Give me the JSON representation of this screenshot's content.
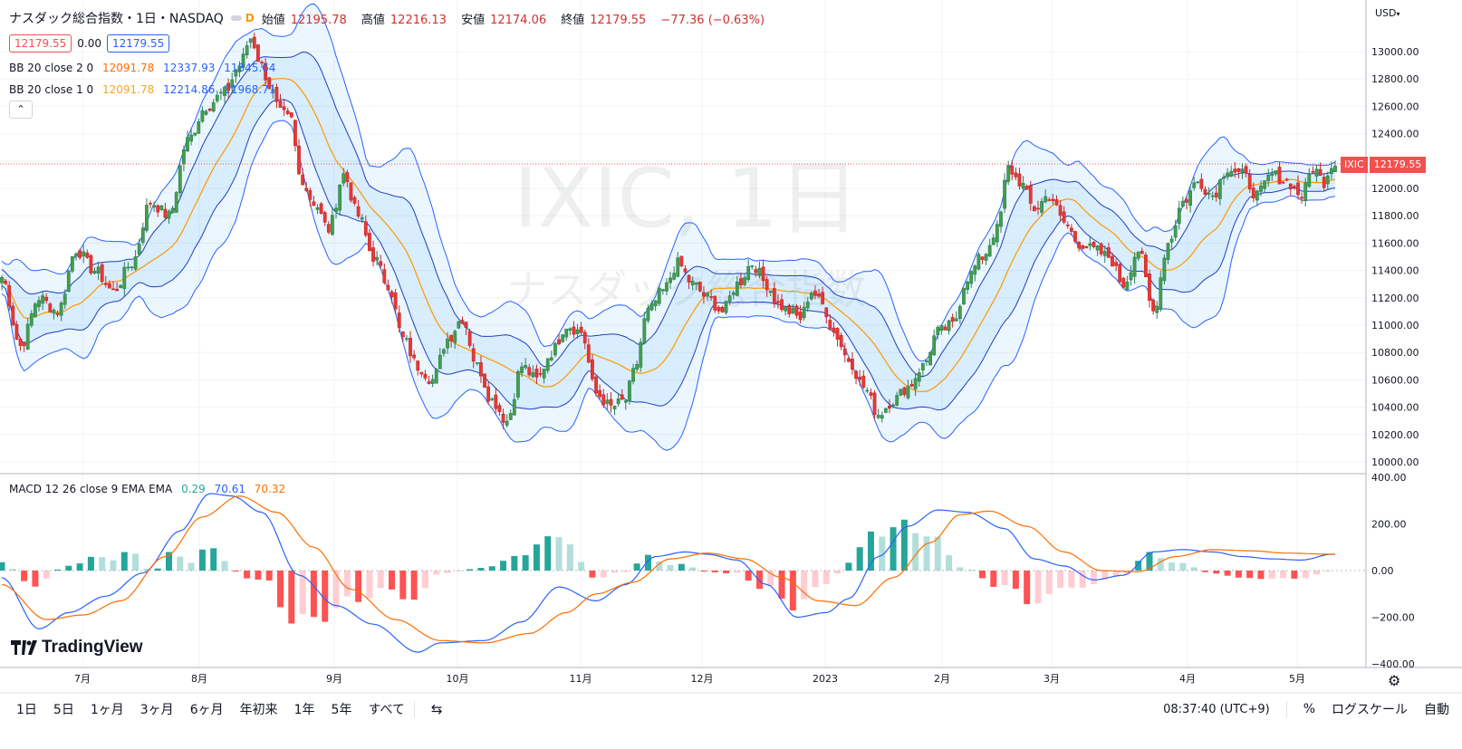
{
  "header": {
    "symbol_title": "ナスダック総合指数・1日・NASDAQ",
    "interval_badge": "D",
    "ohlc": [
      {
        "label": "始値",
        "value": "12195.78"
      },
      {
        "label": "高値",
        "value": "12216.13"
      },
      {
        "label": "安値",
        "value": "12174.06"
      },
      {
        "label": "終値",
        "value": "12179.55"
      },
      {
        "label": "",
        "value": "−77.36 (−0.63%)"
      }
    ],
    "bid": "12179.55",
    "spread": "0.00",
    "ask": "12179.55"
  },
  "indicators": {
    "bb2": {
      "label": "BB 20 close 2 0",
      "basis": "12091.78",
      "upper": "12337.93",
      "lower": "11845.64"
    },
    "bb1": {
      "label": "BB 20 close 1 0",
      "basis": "12091.78",
      "upper": "12214.86",
      "lower": "11968.71"
    },
    "macd": {
      "label": "MACD 12 26 close 9 EMA EMA",
      "hist": "0.29",
      "macd": "70.61",
      "signal": "70.32"
    }
  },
  "watermark": {
    "line1": "IXIC, 1日",
    "line2": "ナスダック総合指数"
  },
  "price_scale": {
    "currency": "USD",
    "last_symbol": "IXIC",
    "last_price": "12179.55",
    "ticks": [
      "13000.00",
      "12800.00",
      "12600.00",
      "12400.00",
      "12200.00",
      "12000.00",
      "11800.00",
      "11600.00",
      "11400.00",
      "11200.00",
      "11000.00",
      "10800.00",
      "10600.00",
      "10400.00",
      "10200.00",
      "10000.00"
    ],
    "macd_ticks": [
      "400.00",
      "200.00",
      "0.00",
      "−200.00",
      "−400.00"
    ]
  },
  "time_scale": {
    "labels": [
      "7月",
      "8月",
      "9月",
      "10月",
      "11月",
      "12月",
      "2023",
      "2月",
      "3月",
      "4月",
      "5月"
    ]
  },
  "bottom_bar": {
    "timeframes": [
      "1日",
      "5日",
      "1ヶ月",
      "3ヶ月",
      "6ヶ月",
      "年初来",
      "1年",
      "5年",
      "すべて"
    ],
    "clock": "08:37:40 (UTC+9)",
    "percent": "%",
    "log_scale": "ログスケール",
    "auto": "自動"
  },
  "logo_text": "TradingView",
  "colors": {
    "up": "#26a69a",
    "up_dark": "#4caf50",
    "down": "#ef5350",
    "bb_basis": "#ff9800",
    "bb_band": "#2962ff",
    "macd_line": "#2962ff",
    "signal_line": "#ff6d00",
    "hist_up_strong": "#26a69a",
    "hist_up_weak": "#b2dfdb",
    "hist_down_strong": "#ff5252",
    "hist_down_weak": "#ffcdd2"
  },
  "chart_data": {
    "type": "candlestick",
    "x_range": [
      "2022-06-13",
      "2023-05-09"
    ],
    "ylim": [
      9900,
      13150
    ],
    "macd_ylim": [
      -400,
      400
    ],
    "close_anchors": [
      [
        0,
        11350
      ],
      [
        5,
        10850
      ],
      [
        10,
        11200
      ],
      [
        15,
        11100
      ],
      [
        20,
        11550
      ],
      [
        25,
        11400
      ],
      [
        30,
        11250
      ],
      [
        35,
        11450
      ],
      [
        40,
        11900
      ],
      [
        45,
        11800
      ],
      [
        50,
        12350
      ],
      [
        55,
        12600
      ],
      [
        60,
        12700
      ],
      [
        64,
        12900
      ],
      [
        67,
        13100
      ],
      [
        70,
        12900
      ],
      [
        72,
        12750
      ],
      [
        75,
        12550
      ],
      [
        78,
        12500
      ],
      [
        80,
        12100
      ],
      [
        84,
        11900
      ],
      [
        88,
        11700
      ],
      [
        92,
        12100
      ],
      [
        96,
        11800
      ],
      [
        100,
        11500
      ],
      [
        104,
        11300
      ],
      [
        108,
        10900
      ],
      [
        112,
        10700
      ],
      [
        116,
        10600
      ],
      [
        120,
        10900
      ],
      [
        124,
        11050
      ],
      [
        128,
        10700
      ],
      [
        132,
        10450
      ],
      [
        136,
        10300
      ],
      [
        140,
        10700
      ],
      [
        144,
        10600
      ],
      [
        148,
        10800
      ],
      [
        152,
        11000
      ],
      [
        156,
        10950
      ],
      [
        160,
        10500
      ],
      [
        164,
        10400
      ],
      [
        168,
        10450
      ],
      [
        170,
        10650
      ],
      [
        174,
        11100
      ],
      [
        178,
        11250
      ],
      [
        182,
        11450
      ],
      [
        186,
        11300
      ],
      [
        190,
        11200
      ],
      [
        194,
        11100
      ],
      [
        198,
        11300
      ],
      [
        202,
        11450
      ],
      [
        206,
        11300
      ],
      [
        209,
        11150
      ],
      [
        212,
        11100
      ],
      [
        215,
        11050
      ],
      [
        218,
        11250
      ],
      [
        221,
        11150
      ],
      [
        224,
        10950
      ],
      [
        228,
        10750
      ],
      [
        232,
        10550
      ],
      [
        236,
        10350
      ],
      [
        240,
        10450
      ],
      [
        244,
        10550
      ],
      [
        248,
        10700
      ],
      [
        252,
        10950
      ],
      [
        256,
        11000
      ],
      [
        260,
        11350
      ],
      [
        264,
        11500
      ],
      [
        268,
        11700
      ],
      [
        271,
        12150
      ],
      [
        274,
        12050
      ],
      [
        278,
        11850
      ],
      [
        282,
        11950
      ],
      [
        286,
        11750
      ],
      [
        290,
        11600
      ],
      [
        294,
        11550
      ],
      [
        298,
        11500
      ],
      [
        302,
        11300
      ],
      [
        306,
        11550
      ],
      [
        310,
        11100
      ],
      [
        314,
        11600
      ],
      [
        318,
        11900
      ],
      [
        322,
        12050
      ],
      [
        326,
        11950
      ],
      [
        330,
        12150
      ],
      [
        334,
        12100
      ],
      [
        338,
        11950
      ],
      [
        342,
        12100
      ],
      [
        346,
        12050
      ],
      [
        350,
        11950
      ],
      [
        353,
        12150
      ],
      [
        356,
        12050
      ],
      [
        358,
        12180
      ]
    ],
    "macd_anchors": [
      [
        0,
        -30
      ],
      [
        10,
        -250
      ],
      [
        18,
        -180
      ],
      [
        28,
        -110
      ],
      [
        38,
        -10
      ],
      [
        48,
        170
      ],
      [
        56,
        330
      ],
      [
        62,
        320
      ],
      [
        70,
        250
      ],
      [
        80,
        -20
      ],
      [
        90,
        -150
      ],
      [
        100,
        -230
      ],
      [
        112,
        -350
      ],
      [
        118,
        -310
      ],
      [
        130,
        -300
      ],
      [
        140,
        -220
      ],
      [
        150,
        -70
      ],
      [
        160,
        -130
      ],
      [
        168,
        -60
      ],
      [
        176,
        60
      ],
      [
        184,
        80
      ],
      [
        190,
        70
      ],
      [
        198,
        45
      ],
      [
        206,
        -60
      ],
      [
        214,
        -200
      ],
      [
        222,
        -180
      ],
      [
        228,
        -120
      ],
      [
        236,
        60
      ],
      [
        244,
        190
      ],
      [
        252,
        260
      ],
      [
        260,
        250
      ],
      [
        270,
        180
      ],
      [
        278,
        50
      ],
      [
        286,
        20
      ],
      [
        294,
        -40
      ],
      [
        302,
        -20
      ],
      [
        310,
        80
      ],
      [
        318,
        90
      ],
      [
        326,
        80
      ],
      [
        334,
        60
      ],
      [
        342,
        50
      ],
      [
        350,
        45
      ],
      [
        358,
        70
      ]
    ],
    "signal_anchors": [
      [
        0,
        -60
      ],
      [
        12,
        -210
      ],
      [
        22,
        -190
      ],
      [
        32,
        -130
      ],
      [
        44,
        60
      ],
      [
        54,
        230
      ],
      [
        64,
        320
      ],
      [
        74,
        250
      ],
      [
        84,
        100
      ],
      [
        94,
        -80
      ],
      [
        106,
        -210
      ],
      [
        118,
        -300
      ],
      [
        130,
        -310
      ],
      [
        142,
        -270
      ],
      [
        152,
        -180
      ],
      [
        160,
        -100
      ],
      [
        170,
        -50
      ],
      [
        180,
        50
      ],
      [
        190,
        75
      ],
      [
        200,
        50
      ],
      [
        210,
        -30
      ],
      [
        220,
        -130
      ],
      [
        230,
        -150
      ],
      [
        240,
        -30
      ],
      [
        250,
        120
      ],
      [
        258,
        240
      ],
      [
        266,
        255
      ],
      [
        276,
        190
      ],
      [
        286,
        80
      ],
      [
        296,
        0
      ],
      [
        306,
        -5
      ],
      [
        316,
        60
      ],
      [
        326,
        90
      ],
      [
        336,
        85
      ],
      [
        346,
        75
      ],
      [
        358,
        70
      ]
    ]
  }
}
